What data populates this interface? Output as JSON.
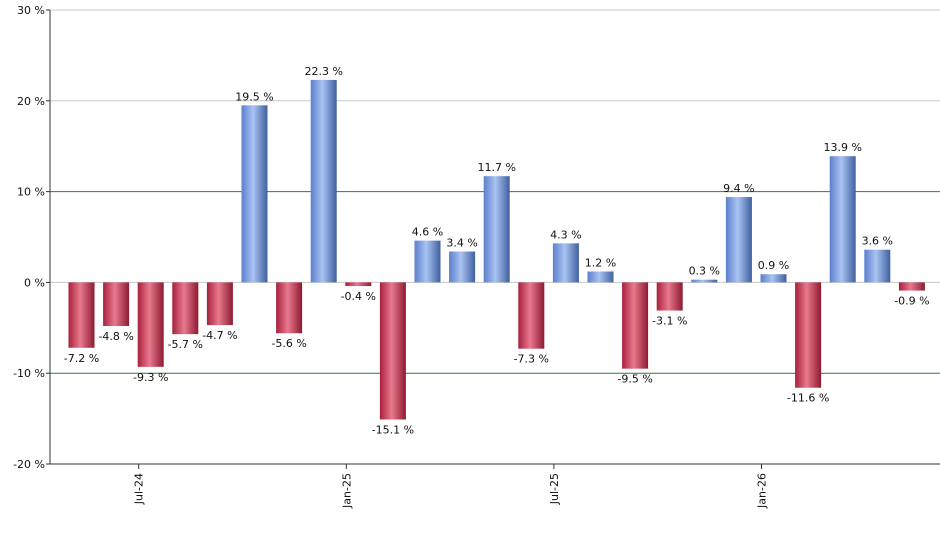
{
  "chart_data": {
    "type": "bar",
    "title": "",
    "xlabel": "",
    "ylabel": "",
    "ylim": [
      -20,
      30
    ],
    "y_ticks": [
      {
        "value": -20,
        "label": "-20 %"
      },
      {
        "value": -10,
        "label": "-10 %"
      },
      {
        "value": 0,
        "label": "0 %"
      },
      {
        "value": 10,
        "label": "10 %"
      },
      {
        "value": 20,
        "label": "20 %"
      },
      {
        "value": 30,
        "label": "30 %"
      }
    ],
    "x_ticks": [
      {
        "index": 2,
        "label": "Jul-24"
      },
      {
        "index": 8,
        "label": "Jan-25"
      },
      {
        "index": 14,
        "label": "Jul-25"
      },
      {
        "index": 20,
        "label": "Jan-26"
      }
    ],
    "values": [
      -7.2,
      -4.8,
      -9.3,
      -5.7,
      -4.7,
      19.5,
      -5.6,
      22.3,
      -0.4,
      -15.1,
      4.6,
      3.4,
      11.7,
      -7.3,
      4.3,
      1.2,
      -9.5,
      -3.1,
      0.3,
      9.4,
      0.9,
      -11.6,
      13.9,
      3.6,
      -0.9
    ],
    "data_labels": [
      "-7.2 %",
      "-4.8 %",
      "-9.3 %",
      "-5.7 %",
      "-4.7 %",
      "19.5 %",
      "-5.6 %",
      "22.3 %",
      "-0.4 %",
      "-15.1 %",
      "4.6 %",
      "3.4 %",
      "11.7 %",
      "-7.3 %",
      "4.3 %",
      "1.2 %",
      "-9.5 %",
      "-3.1 %",
      "0.3 %",
      "9.4 %",
      "0.9 %",
      "-11.6 %",
      "13.9 %",
      "3.6 %",
      "-0.9 %"
    ],
    "colors": {
      "positive": "#7b9fe0",
      "negative": "#c8324e",
      "gridline": "#c8c8c8",
      "highlight_gridline": "#2e7d32"
    },
    "highlight_lines": [
      10,
      -10
    ],
    "grid": true,
    "legend": "none"
  }
}
